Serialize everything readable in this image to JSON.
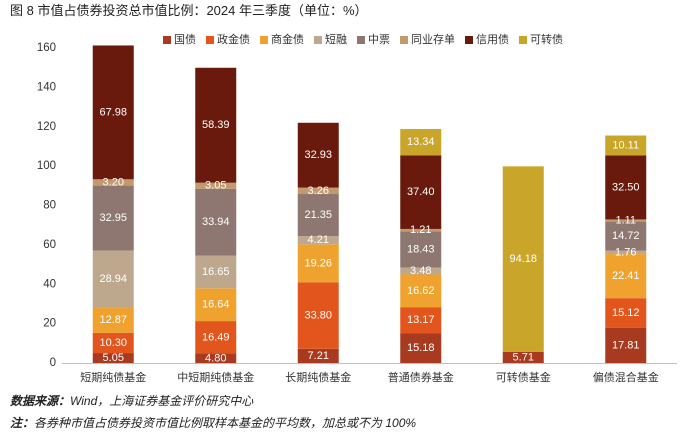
{
  "chart_data": {
    "type": "bar",
    "stacked": true,
    "title": "图 8 市值占债券投资总市值比例：2024 年三季度（单位：%）",
    "xlabel": "",
    "ylabel": "",
    "ylim": [
      0,
      160
    ],
    "yticks": [
      0,
      20,
      40,
      60,
      80,
      100,
      120,
      140,
      160
    ],
    "grid": false,
    "legend": "top",
    "categories": [
      "短期纯债基金",
      "中短期纯债基金",
      "长期纯债基金",
      "普通债券基金",
      "可转债基金",
      "偏债混合基金"
    ],
    "series": [
      {
        "name": "国债",
        "color": "#A83A20",
        "values": [
          5.05,
          4.8,
          7.21,
          15.18,
          5.71,
          17.81
        ]
      },
      {
        "name": "政金债",
        "color": "#E2561E",
        "values": [
          10.3,
          16.49,
          33.8,
          13.17,
          null,
          15.12
        ]
      },
      {
        "name": "商金债",
        "color": "#F0A22E",
        "values": [
          12.87,
          16.64,
          19.26,
          16.62,
          null,
          22.41
        ]
      },
      {
        "name": "短融",
        "color": "#BDA88E",
        "values": [
          28.94,
          16.65,
          4.21,
          3.48,
          null,
          1.76
        ]
      },
      {
        "name": "中票",
        "color": "#8E7770",
        "values": [
          32.95,
          33.94,
          21.35,
          18.43,
          null,
          14.72
        ]
      },
      {
        "name": "同业存单",
        "color": "#C39A6B",
        "values": [
          3.2,
          3.05,
          3.26,
          1.21,
          null,
          1.11
        ]
      },
      {
        "name": "信用债",
        "color": "#6A1A0C",
        "values": [
          67.98,
          58.39,
          32.93,
          37.4,
          null,
          32.5
        ]
      },
      {
        "name": "可转债",
        "color": "#C9A62A",
        "values": [
          null,
          null,
          null,
          13.34,
          94.18,
          10.11
        ]
      }
    ]
  },
  "footer": {
    "source_label": "数据来源：",
    "source_text": "Wind，上海证券基金评价研究中心",
    "note_label": "注：",
    "note_text": "各券种市值占债券投资市值比例取样本基金的平均数，加总或不为 100%"
  }
}
